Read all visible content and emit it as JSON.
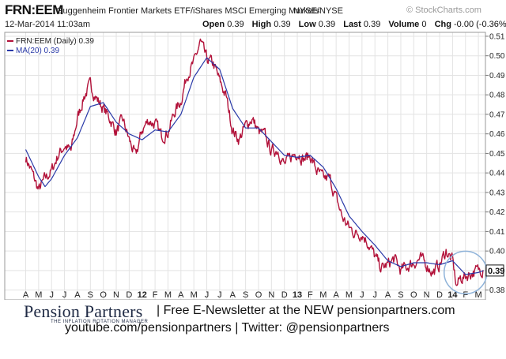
{
  "header": {
    "symbol": "FRN:EEM",
    "name": "Guggenheim Frontier Markets ETF/iShares MSCI Emerging Markets",
    "exchange": "NYSE/NYSE",
    "brand": "© StockCharts.com",
    "date": "12-Mar-2014 11:03am",
    "ohlc": {
      "open_label": "Open",
      "open": "0.39",
      "high_label": "High",
      "high": "0.39",
      "low_label": "Low",
      "low": "0.39",
      "last_label": "Last",
      "last": "0.39",
      "volume_label": "Volume",
      "volume": "0",
      "chg_label": "Chg",
      "chg": "-0.00 (-0.36%)"
    }
  },
  "footer": {
    "logo": "Pension Partners",
    "logo_sub": "THE INFLATION ROTATION MANAGER",
    "newsletter": "| Free E-Newsletter at the NEW pensionpartners.com",
    "links": "youtube.com/pensionpartners | Twitter: @pensionpartners"
  },
  "colors": {
    "price": "#b2123a",
    "ma": "#2a3aa8",
    "grid": "#e3e3e3",
    "circle": "#8fb3d9"
  },
  "chart_data": {
    "type": "line",
    "legend": [
      {
        "label": "FRN:EEM (Daily) 0.39",
        "color": "#b2123a"
      },
      {
        "label": "MA(20) 0.39",
        "color": "#2a3aa8"
      }
    ],
    "legend_position": "top-left",
    "grid": true,
    "ylim": [
      0.375,
      0.512
    ],
    "y_ticks": [
      0.38,
      0.39,
      0.4,
      0.41,
      0.42,
      0.43,
      0.44,
      0.45,
      0.46,
      0.47,
      0.48,
      0.49,
      0.5,
      0.51
    ],
    "y_tick_labels": [
      "0.38",
      "0.39",
      "0.40",
      "0.41",
      "0.42",
      "0.43",
      "0.44",
      "0.45",
      "0.46",
      "0.47",
      "0.48",
      "0.49",
      "0.50",
      "0.51"
    ],
    "x_ticks": [
      {
        "label": "A",
        "bold": false
      },
      {
        "label": "M",
        "bold": false
      },
      {
        "label": "J",
        "bold": false
      },
      {
        "label": "J",
        "bold": false
      },
      {
        "label": "A",
        "bold": false
      },
      {
        "label": "S",
        "bold": false
      },
      {
        "label": "O",
        "bold": false
      },
      {
        "label": "N",
        "bold": false
      },
      {
        "label": "D",
        "bold": false
      },
      {
        "label": "12",
        "bold": true
      },
      {
        "label": "F",
        "bold": false
      },
      {
        "label": "M",
        "bold": false
      },
      {
        "label": "A",
        "bold": false
      },
      {
        "label": "M",
        "bold": false
      },
      {
        "label": "J",
        "bold": false
      },
      {
        "label": "J",
        "bold": false
      },
      {
        "label": "A",
        "bold": false
      },
      {
        "label": "S",
        "bold": false
      },
      {
        "label": "O",
        "bold": false
      },
      {
        "label": "N",
        "bold": false
      },
      {
        "label": "D",
        "bold": false
      },
      {
        "label": "13",
        "bold": true
      },
      {
        "label": "F",
        "bold": false
      },
      {
        "label": "M",
        "bold": false
      },
      {
        "label": "A",
        "bold": false
      },
      {
        "label": "M",
        "bold": false
      },
      {
        "label": "J",
        "bold": false
      },
      {
        "label": "J",
        "bold": false
      },
      {
        "label": "A",
        "bold": false
      },
      {
        "label": "S",
        "bold": false
      },
      {
        "label": "O",
        "bold": false
      },
      {
        "label": "N",
        "bold": false
      },
      {
        "label": "D",
        "bold": false
      },
      {
        "label": "14",
        "bold": true
      },
      {
        "label": "F",
        "bold": false
      },
      {
        "label": "M",
        "bold": false
      }
    ],
    "last_value_label": "0.39",
    "last_value": 0.39,
    "price_anchors": [
      [
        0,
        0.448
      ],
      [
        0.5,
        0.44
      ],
      [
        1,
        0.431
      ],
      [
        1.5,
        0.437
      ],
      [
        2,
        0.441
      ],
      [
        2.5,
        0.449
      ],
      [
        3,
        0.454
      ],
      [
        3.5,
        0.451
      ],
      [
        4,
        0.468
      ],
      [
        4.5,
        0.479
      ],
      [
        5,
        0.485
      ],
      [
        5.5,
        0.478
      ],
      [
        6,
        0.473
      ],
      [
        6.5,
        0.468
      ],
      [
        7,
        0.461
      ],
      [
        7.5,
        0.467
      ],
      [
        8,
        0.457
      ],
      [
        8.5,
        0.448
      ],
      [
        9,
        0.462
      ],
      [
        9.5,
        0.467
      ],
      [
        10,
        0.465
      ],
      [
        10.5,
        0.459
      ],
      [
        11,
        0.461
      ],
      [
        11.5,
        0.471
      ],
      [
        12,
        0.477
      ],
      [
        12.5,
        0.491
      ],
      [
        13,
        0.496
      ],
      [
        13.5,
        0.507
      ],
      [
        14,
        0.498
      ],
      [
        14.5,
        0.496
      ],
      [
        15,
        0.487
      ],
      [
        15.5,
        0.479
      ],
      [
        16,
        0.462
      ],
      [
        16.5,
        0.457
      ],
      [
        17,
        0.464
      ],
      [
        17.5,
        0.468
      ],
      [
        18,
        0.461
      ],
      [
        18.5,
        0.459
      ],
      [
        19,
        0.451
      ],
      [
        19.5,
        0.452
      ],
      [
        20,
        0.444
      ],
      [
        20.5,
        0.448
      ],
      [
        21,
        0.451
      ],
      [
        21.5,
        0.447
      ],
      [
        22,
        0.449
      ],
      [
        22.5,
        0.441
      ],
      [
        23,
        0.437
      ],
      [
        23.5,
        0.437
      ],
      [
        24,
        0.427
      ],
      [
        24.5,
        0.417
      ],
      [
        25,
        0.412
      ],
      [
        25.5,
        0.409
      ],
      [
        26,
        0.409
      ],
      [
        26.5,
        0.404
      ],
      [
        27,
        0.397
      ],
      [
        27.5,
        0.391
      ],
      [
        28,
        0.393
      ],
      [
        28.5,
        0.396
      ],
      [
        29,
        0.39
      ],
      [
        29.5,
        0.392
      ],
      [
        30,
        0.394
      ],
      [
        30.5,
        0.396
      ],
      [
        31,
        0.393
      ],
      [
        31.5,
        0.389
      ],
      [
        32,
        0.393
      ],
      [
        32.5,
        0.4
      ],
      [
        33,
        0.395
      ],
      [
        33.3,
        0.382
      ],
      [
        33.6,
        0.386
      ],
      [
        34,
        0.387
      ],
      [
        34.5,
        0.389
      ],
      [
        35,
        0.39
      ],
      [
        35.4,
        0.391
      ]
    ],
    "ma_anchors": [
      [
        0,
        0.452
      ],
      [
        1,
        0.438
      ],
      [
        1.5,
        0.433
      ],
      [
        2,
        0.437
      ],
      [
        3,
        0.449
      ],
      [
        4,
        0.458
      ],
      [
        5,
        0.474
      ],
      [
        6,
        0.476
      ],
      [
        7,
        0.466
      ],
      [
        8,
        0.46
      ],
      [
        9,
        0.457
      ],
      [
        10,
        0.462
      ],
      [
        11,
        0.461
      ],
      [
        12,
        0.47
      ],
      [
        13,
        0.489
      ],
      [
        14,
        0.499
      ],
      [
        15,
        0.493
      ],
      [
        16,
        0.473
      ],
      [
        17,
        0.463
      ],
      [
        18,
        0.463
      ],
      [
        19,
        0.456
      ],
      [
        20,
        0.449
      ],
      [
        21,
        0.448
      ],
      [
        22,
        0.449
      ],
      [
        23,
        0.443
      ],
      [
        24,
        0.432
      ],
      [
        25,
        0.418
      ],
      [
        26,
        0.41
      ],
      [
        27,
        0.403
      ],
      [
        28,
        0.395
      ],
      [
        29,
        0.392
      ],
      [
        30,
        0.394
      ],
      [
        31,
        0.394
      ],
      [
        32,
        0.393
      ],
      [
        33,
        0.395
      ],
      [
        34,
        0.388
      ],
      [
        35,
        0.389
      ],
      [
        35.4,
        0.39
      ]
    ]
  }
}
